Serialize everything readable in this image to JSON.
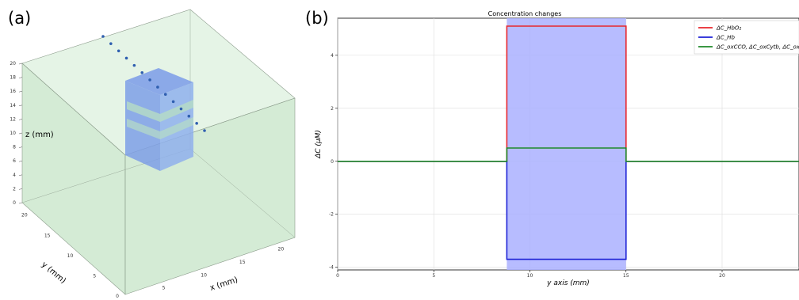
{
  "panel_a": {
    "label": "(a)",
    "xlabel": "x (mm)",
    "ylabel": "y (mm)",
    "zlabel": "z (mm)",
    "z_ticks": [
      "0",
      "2",
      "4",
      "6",
      "8",
      "10",
      "12",
      "14",
      "16",
      "18",
      "20"
    ],
    "x_ticks": [
      "5",
      "10",
      "15",
      "20"
    ],
    "y_ticks": [
      "0",
      "5",
      "10",
      "15",
      "20"
    ],
    "box_color": "#b9e0bb",
    "inclusion_color": "#7b9be8",
    "probe_color": "#2f5fb0",
    "probe_points": 14
  },
  "panel_b": {
    "label": "(b)",
    "chart_data": {
      "type": "line",
      "title": "Concentration changes",
      "xlabel": "y axis (mm)",
      "ylabel": "ΔC (μM)",
      "xlim": [
        0,
        24
      ],
      "ylim": [
        -4.1,
        5.4
      ],
      "x_ticks": [
        0,
        5,
        10,
        15,
        20
      ],
      "y_ticks": [
        -4,
        -2,
        0,
        2,
        4
      ],
      "grid": true,
      "legend_position": "top-right",
      "shaded_region": {
        "x_start": 8.8,
        "x_end": 15,
        "color": "#aab0ff"
      },
      "series": [
        {
          "name": "ΔC_HbO₂",
          "color": "#e8262b",
          "x": [
            0,
            8.8,
            8.8,
            15,
            15,
            24
          ],
          "y": [
            0,
            0,
            5.1,
            5.1,
            0,
            0
          ]
        },
        {
          "name": "ΔC_Hb",
          "color": "#1f23d6",
          "x": [
            0,
            8.8,
            8.8,
            15,
            15,
            24
          ],
          "y": [
            0,
            0,
            -3.7,
            -3.7,
            0,
            0
          ]
        },
        {
          "name": "ΔC_oxCCO, ΔC_oxCytb, ΔC_oxCytc",
          "color": "#1f8a2a",
          "x": [
            0,
            8.8,
            8.8,
            15,
            15,
            24
          ],
          "y": [
            0,
            0,
            0.5,
            0.5,
            0,
            0
          ]
        }
      ]
    }
  }
}
